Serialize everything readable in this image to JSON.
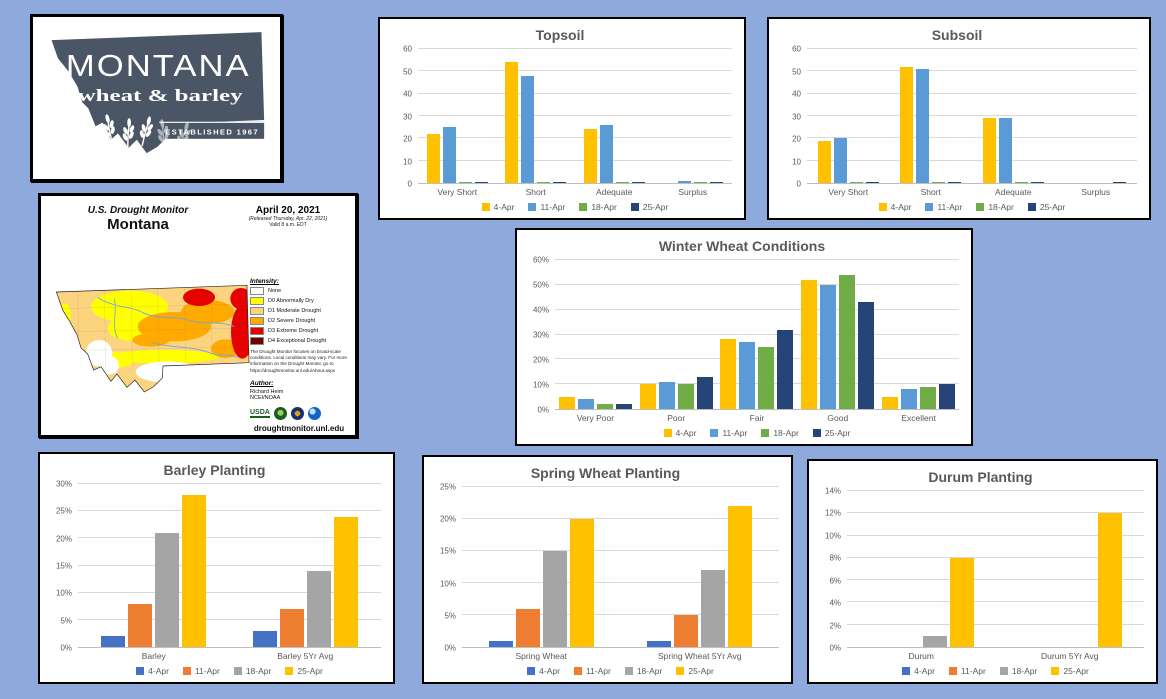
{
  "page": {
    "background_color": "#8EA9DC"
  },
  "logo": {
    "title": "MONTANA",
    "subtitle": "wheat & barley",
    "established": "ESTABLISHED 1967",
    "brand_color": "#4A5565"
  },
  "drought_monitor": {
    "title_line1": "U.S. Drought Monitor",
    "title_line2": "Montana",
    "date": "April 20, 2021",
    "released": "(Released Thursday, Apr. 22, 2021)",
    "valid": "Valid 8 a.m. EDT",
    "intensity_label": "Intensity:",
    "legend": [
      {
        "label": "None",
        "color": "#FFFFFF"
      },
      {
        "label": "D0 Abnormally Dry",
        "color": "#FFFF00"
      },
      {
        "label": "D1 Moderate Drought",
        "color": "#FCD37F"
      },
      {
        "label": "D2 Severe Drought",
        "color": "#FFAA00"
      },
      {
        "label": "D3 Extreme Drought",
        "color": "#E60000"
      },
      {
        "label": "D4 Exceptional Drought",
        "color": "#730000"
      }
    ],
    "disclaimer": "The Drought Monitor focuses on broad-scale conditions. Local conditions may vary. For more information on the Drought Monitor, go to https://droughtmonitor.unl.edu/About.aspx",
    "author_label": "Author:",
    "author_name": "Richard Heim",
    "author_org": "NCEI/NOAA",
    "usda_label": "USDA",
    "url": "droughtmonitor.unl.edu"
  },
  "chart_data": [
    {
      "id": "topsoil",
      "type": "bar",
      "title": "Topsoil",
      "categories": [
        "Very Short",
        "Short",
        "Adequate",
        "Surplus"
      ],
      "series": [
        {
          "name": "4-Apr",
          "color": "#FFC000",
          "values": [
            22,
            54,
            24,
            0
          ]
        },
        {
          "name": "11-Apr",
          "color": "#5B9BD5",
          "values": [
            25,
            48,
            26,
            1
          ]
        },
        {
          "name": "18-Apr",
          "color": "#70AD47",
          "values": [
            0.5,
            0.5,
            0.5,
            0.5
          ]
        },
        {
          "name": "25-Apr",
          "color": "#264478",
          "values": [
            0.5,
            0.5,
            0.5,
            0.5
          ]
        }
      ],
      "ylim": [
        0,
        60
      ],
      "ystep": 10,
      "percent": false,
      "grid": true,
      "legend_position": "bottom"
    },
    {
      "id": "subsoil",
      "type": "bar",
      "title": "Subsoil",
      "categories": [
        "Very Short",
        "Short",
        "Adequate",
        "Surplus"
      ],
      "series": [
        {
          "name": "4-Apr",
          "color": "#FFC000",
          "values": [
            19,
            52,
            29,
            0
          ]
        },
        {
          "name": "11-Apr",
          "color": "#5B9BD5",
          "values": [
            20,
            51,
            29,
            0
          ]
        },
        {
          "name": "18-Apr",
          "color": "#70AD47",
          "values": [
            0.5,
            0.5,
            0.5,
            0
          ]
        },
        {
          "name": "25-Apr",
          "color": "#264478",
          "values": [
            0.5,
            0.5,
            0.5,
            0.5
          ]
        }
      ],
      "ylim": [
        0,
        60
      ],
      "ystep": 10,
      "percent": false,
      "grid": true,
      "legend_position": "bottom"
    },
    {
      "id": "winter",
      "type": "bar",
      "title": "Winter Wheat Conditions",
      "categories": [
        "Very Poor",
        "Poor",
        "Fair",
        "Good",
        "Excellent"
      ],
      "series": [
        {
          "name": "4-Apr",
          "color": "#FFC000",
          "values": [
            5,
            10,
            28,
            52,
            5
          ]
        },
        {
          "name": "11-Apr",
          "color": "#5B9BD5",
          "values": [
            4,
            11,
            27,
            50,
            8
          ]
        },
        {
          "name": "18-Apr",
          "color": "#70AD47",
          "values": [
            2,
            10,
            25,
            54,
            9
          ]
        },
        {
          "name": "25-Apr",
          "color": "#264478",
          "values": [
            2,
            13,
            32,
            43,
            10
          ]
        }
      ],
      "ylim": [
        0,
        60
      ],
      "ystep": 10,
      "percent": true,
      "grid": true,
      "legend_position": "bottom"
    },
    {
      "id": "barley",
      "type": "bar",
      "title": "Barley Planting",
      "categories": [
        "Barley",
        "Barley 5Yr Avg"
      ],
      "series": [
        {
          "name": "4-Apr",
          "color": "#4472C4",
          "values": [
            2,
            3
          ]
        },
        {
          "name": "11-Apr",
          "color": "#ED7D31",
          "values": [
            8,
            7
          ]
        },
        {
          "name": "18-Apr",
          "color": "#A5A5A5",
          "values": [
            21,
            14
          ]
        },
        {
          "name": "25-Apr",
          "color": "#FFC000",
          "values": [
            28,
            24
          ]
        }
      ],
      "ylim": [
        0,
        30
      ],
      "ystep": 5,
      "percent": true,
      "grid": true,
      "legend_position": "bottom"
    },
    {
      "id": "spring",
      "type": "bar",
      "title": "Spring Wheat Planting",
      "categories": [
        "Spring Wheat",
        "Spring Wheat 5Yr Avg"
      ],
      "series": [
        {
          "name": "4-Apr",
          "color": "#4472C4",
          "values": [
            1,
            1
          ]
        },
        {
          "name": "11-Apr",
          "color": "#ED7D31",
          "values": [
            6,
            5
          ]
        },
        {
          "name": "18-Apr",
          "color": "#A5A5A5",
          "values": [
            15,
            12
          ]
        },
        {
          "name": "25-Apr",
          "color": "#FFC000",
          "values": [
            20,
            22
          ]
        }
      ],
      "ylim": [
        0,
        25
      ],
      "ystep": 5,
      "percent": true,
      "grid": true,
      "legend_position": "bottom"
    },
    {
      "id": "durum",
      "type": "bar",
      "title": "Durum Planting",
      "categories": [
        "Durum",
        "Durum 5Yr Avg"
      ],
      "series": [
        {
          "name": "4-Apr",
          "color": "#4472C4",
          "values": [
            0,
            0
          ]
        },
        {
          "name": "11-Apr",
          "color": "#ED7D31",
          "values": [
            0,
            0
          ]
        },
        {
          "name": "18-Apr",
          "color": "#A5A5A5",
          "values": [
            1,
            0
          ]
        },
        {
          "name": "25-Apr",
          "color": "#FFC000",
          "values": [
            8,
            12
          ]
        }
      ],
      "ylim": [
        0,
        14
      ],
      "ystep": 2,
      "percent": true,
      "grid": true,
      "legend_position": "bottom"
    }
  ]
}
